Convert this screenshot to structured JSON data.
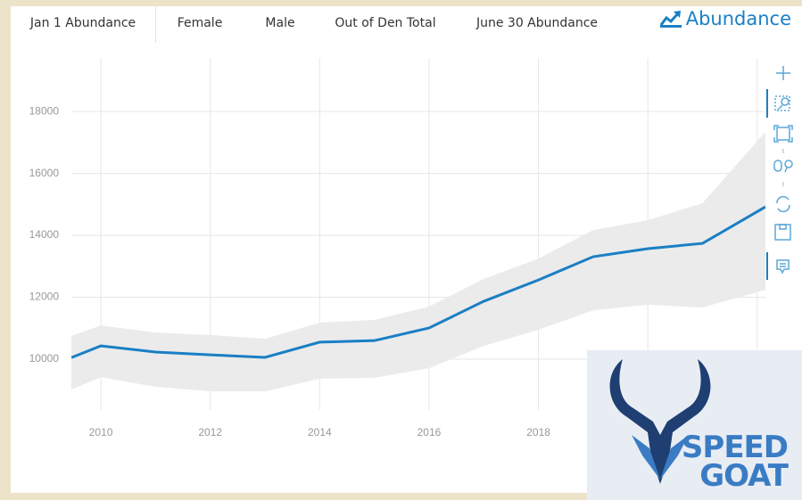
{
  "tabs": [
    "Jan 1 Abundance",
    "Female",
    "Male",
    "Out of Den Total",
    "June 30 Abundance"
  ],
  "header": {
    "title": "Abundance"
  },
  "chart_data": {
    "type": "line",
    "x": [
      2009.46,
      2010,
      2011,
      2012,
      2013,
      2014,
      2015,
      2016,
      2017,
      2018,
      2019,
      2020,
      2021,
      2022.15
    ],
    "series": [
      {
        "color": "#1a7fc4",
        "values": [
          10050,
          10430,
          10230,
          10140,
          10060,
          10550,
          10600,
          11010,
          11870,
          12560,
          13310,
          13570,
          13740,
          14920
        ]
      }
    ],
    "band": {
      "color": "#ebebeb",
      "upper": [
        10750,
        11090,
        10860,
        10780,
        10660,
        11180,
        11270,
        11700,
        12590,
        13250,
        14170,
        14490,
        15040,
        17340
      ],
      "lower": [
        9020,
        9420,
        9110,
        8960,
        8960,
        9370,
        9400,
        9710,
        10430,
        10950,
        11580,
        11760,
        11670,
        12240
      ]
    },
    "xlim": [
      2009.46,
      2022.15
    ],
    "xticks": [
      2010,
      2012,
      2014,
      2016,
      2018,
      2020,
      2022
    ],
    "ylim": [
      8360,
      19730
    ],
    "yticks": [
      10000,
      12000,
      14000,
      16000,
      18000
    ],
    "grid": true
  },
  "logo": {
    "lines": [
      "SPEED",
      "GOAT"
    ]
  }
}
